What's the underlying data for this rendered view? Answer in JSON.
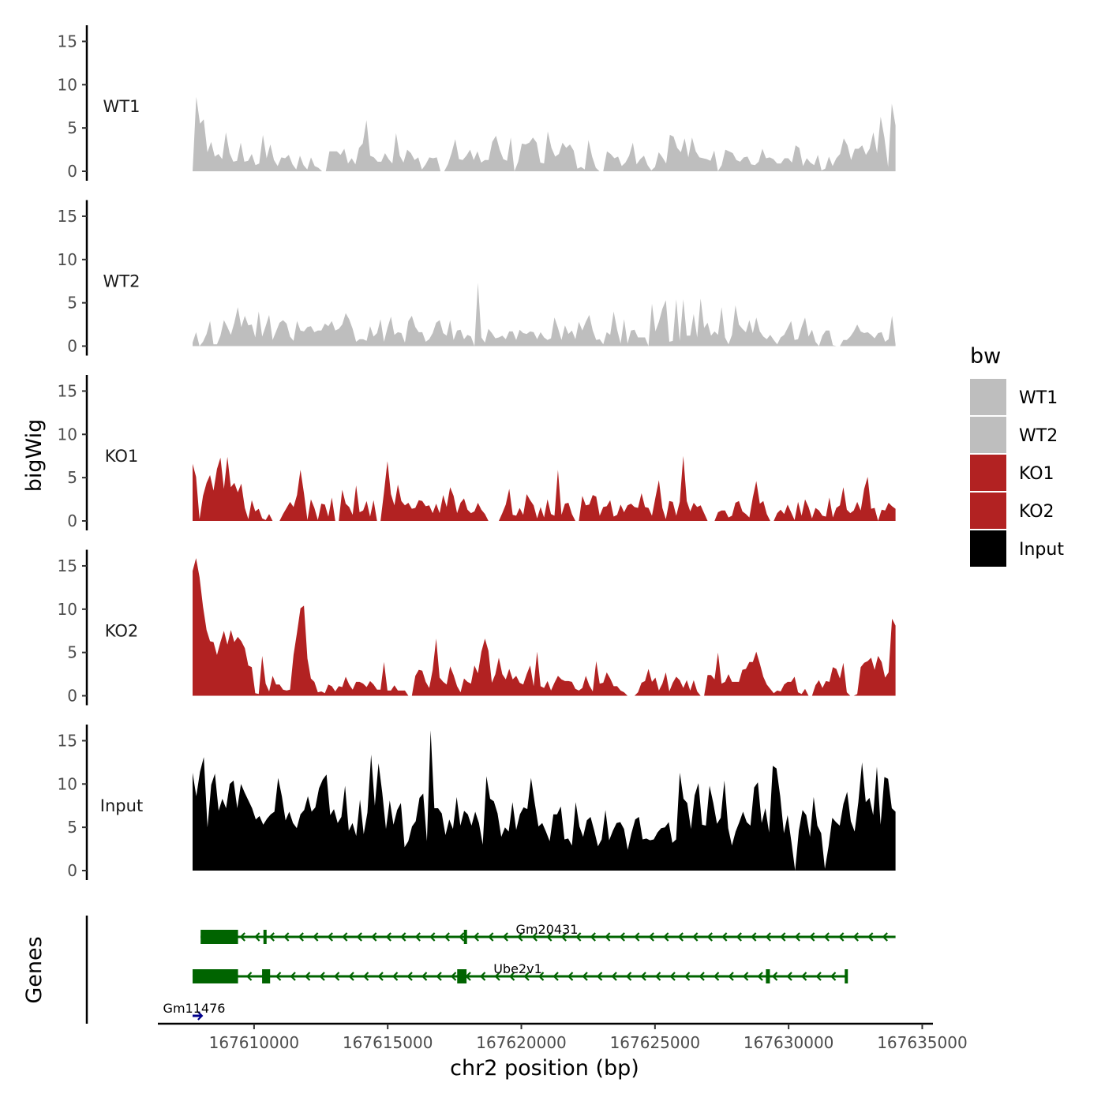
{
  "chart_data": {
    "type": "area",
    "title": "",
    "xlabel": "chr2 position (bp)",
    "ylabel": "bigWig",
    "genes_label": "Genes",
    "xlim": [
      167606400,
      167635400
    ],
    "ylim": [
      0,
      16.5
    ],
    "x_ticks": [
      167610000,
      167615000,
      167620000,
      167625000,
      167630000,
      167635000
    ],
    "x_tick_labels": [
      "167610000",
      "167615000",
      "167620000",
      "167625000",
      "167630000",
      "167635000"
    ],
    "y_ticks": [
      0,
      5,
      10,
      15
    ],
    "y_tick_labels": [
      "0",
      "5",
      "10",
      "15"
    ],
    "x_start": 167607700,
    "x_end": 167634000,
    "legend": {
      "title": "bw",
      "position": "right",
      "entries": [
        {
          "name": "WT1",
          "color": "#bebebe"
        },
        {
          "name": "WT2",
          "color": "#bebebe"
        },
        {
          "name": "KO1",
          "color": "#b22222"
        },
        {
          "name": "KO2",
          "color": "#b22222"
        },
        {
          "name": "Input",
          "color": "#000000"
        }
      ]
    },
    "series": [
      {
        "name": "WT1",
        "color": "#bebebe",
        "values": [
          0.0,
          8.6,
          5.5,
          6.0,
          2.2,
          3.4,
          1.7,
          2.0,
          1.4,
          4.5,
          2.1,
          1.1,
          1.2,
          3.3,
          1.1,
          1.2,
          2.0,
          0.7,
          0.9,
          4.2,
          1.5,
          3.1,
          1.3,
          0.6,
          1.6,
          1.5,
          1.9,
          0.8,
          0.2,
          1.8,
          0.7,
          0.2,
          1.6,
          0.6,
          0.4,
          0.0,
          0.0,
          2.3,
          2.3,
          2.3,
          1.9,
          2.6,
          0.9,
          1.5,
          0.8,
          2.7,
          3.2,
          5.9,
          1.8,
          1.6,
          1.1,
          1.1,
          2.1,
          1.4,
          0.9,
          4.4,
          1.8,
          1.0,
          2.5,
          2.1,
          1.3,
          1.6,
          0.2,
          0.8,
          1.6,
          1.5,
          1.6,
          0.0,
          0.0,
          0.8,
          2.1,
          3.7,
          1.4,
          1.3,
          1.8,
          2.5,
          1.3,
          2.3,
          1.0,
          1.3,
          1.3,
          3.4,
          4.1,
          2.5,
          1.4,
          1.2,
          3.9,
          0.0,
          1.1,
          3.2,
          3.1,
          3.3,
          3.9,
          3.3,
          1.0,
          0.9,
          4.6,
          2.7,
          1.7,
          2.0,
          3.3,
          2.7,
          3.1,
          2.4,
          0.3,
          0.5,
          0.2,
          3.6,
          1.7,
          0.4,
          0.0,
          0.0,
          2.3,
          2.0,
          1.5,
          1.7,
          0.6,
          1.0,
          1.8,
          3.3,
          0.8,
          1.4,
          1.8,
          0.7,
          0.1,
          0.5,
          2.2,
          1.6,
          0.9,
          4.2,
          4.0,
          2.7,
          2.2,
          3.8,
          1.6,
          3.9,
          2.3,
          1.6,
          1.5,
          1.4,
          1.2,
          2.4,
          0.0,
          0.7,
          2.5,
          2.3,
          2.1,
          1.3,
          1.1,
          1.6,
          1.7,
          0.8,
          0.7,
          1.1,
          2.6,
          1.5,
          1.6,
          1.4,
          0.9,
          0.9,
          1.5,
          1.5,
          1.0,
          3.0,
          2.7,
          0.6,
          1.5,
          1.0,
          0.7,
          1.9,
          0.1,
          0.3,
          1.7,
          0.6,
          1.5,
          2.0,
          3.8,
          3.0,
          1.3,
          2.6,
          2.6,
          3.0,
          1.9,
          2.6,
          4.5,
          2.1,
          6.3,
          3.9,
          0.5,
          7.8,
          5.3
        ]
      },
      {
        "name": "WT2",
        "color": "#bebebe",
        "values": [
          0.4,
          1.6,
          0.0,
          0.5,
          1.4,
          2.9,
          0.2,
          0.2,
          1.2,
          3.0,
          2.2,
          1.3,
          2.7,
          4.5,
          2.2,
          3.5,
          2.4,
          2.5,
          1.0,
          4.0,
          1.1,
          2.3,
          3.6,
          0.7,
          1.7,
          2.7,
          3.0,
          2.6,
          1.1,
          0.6,
          2.9,
          1.8,
          1.7,
          2.2,
          2.3,
          1.6,
          1.8,
          1.8,
          2.6,
          2.3,
          2.9,
          1.8,
          2.0,
          2.5,
          3.8,
          3.1,
          2.0,
          0.5,
          0.8,
          0.8,
          0.6,
          2.3,
          1.1,
          1.5,
          3.1,
          0.5,
          2.1,
          3.4,
          1.3,
          1.6,
          1.5,
          0.4,
          2.9,
          3.5,
          2.2,
          1.6,
          1.6,
          0.5,
          0.8,
          1.5,
          2.7,
          3.0,
          1.5,
          1.2,
          3.0,
          0.7,
          1.8,
          1.9,
          0.8,
          1.3,
          1.1,
          0.0,
          7.3,
          1.0,
          0.4,
          2.0,
          1.5,
          0.9,
          1.0,
          1.2,
          0.8,
          1.7,
          1.7,
          0.7,
          1.9,
          1.5,
          1.4,
          1.7,
          1.6,
          0.8,
          1.6,
          1.0,
          0.7,
          0.9,
          3.3,
          2.1,
          0.7,
          2.4,
          1.4,
          1.8,
          0.8,
          2.8,
          1.8,
          2.8,
          3.6,
          1.8,
          0.7,
          0.8,
          0.2,
          1.6,
          1.3,
          4.0,
          1.9,
          0.3,
          3.1,
          0.3,
          1.8,
          1.9,
          1.0,
          1.0,
          1.0,
          0.0,
          4.9,
          1.7,
          2.8,
          4.3,
          5.3,
          0.5,
          0.6,
          5.4,
          0.6,
          5.4,
          1.2,
          1.2,
          3.7,
          1.0,
          5.5,
          2.1,
          2.7,
          1.2,
          1.7,
          1.3,
          4.5,
          1.0,
          0.2,
          1.3,
          4.7,
          2.5,
          2.0,
          1.6,
          3.0,
          1.5,
          3.3,
          1.7,
          1.1,
          0.8,
          1.3,
          0.7,
          0.2,
          1.0,
          1.3,
          2.1,
          2.9,
          0.7,
          0.8,
          2.2,
          3.3,
          1.1,
          1.9,
          0.5,
          0.0,
          1.2,
          1.8,
          1.8,
          0.1,
          0.0,
          0.0,
          0.7,
          0.7,
          1.1,
          1.7,
          2.5,
          1.7,
          1.5,
          1.6,
          1.3,
          0.9,
          1.5,
          1.6,
          0.5,
          0.8,
          3.5,
          0.2
        ]
      },
      {
        "name": "KO1",
        "color": "#b22222",
        "values": [
          6.6,
          5.1,
          0.2,
          2.9,
          4.4,
          5.3,
          3.5,
          6.0,
          7.3,
          3.7,
          7.4,
          3.9,
          4.4,
          3.3,
          4.3,
          1.5,
          0.2,
          2.4,
          1.1,
          1.4,
          0.3,
          0.1,
          0.8,
          0.0,
          0.0,
          0.0,
          0.8,
          1.5,
          2.2,
          1.6,
          3.0,
          5.9,
          3.2,
          0.1,
          2.5,
          1.5,
          0.1,
          2.0,
          1.9,
          0.5,
          2.7,
          0.0,
          0.0,
          3.6,
          2.0,
          1.6,
          0.7,
          4.1,
          1.0,
          1.2,
          2.3,
          0.5,
          2.4,
          0.0,
          0.0,
          3.3,
          6.9,
          3.1,
          1.8,
          4.2,
          2.3,
          1.8,
          2.1,
          1.4,
          1.5,
          2.4,
          2.3,
          1.7,
          1.8,
          0.9,
          2.0,
          0.9,
          3.0,
          1.6,
          3.9,
          2.9,
          0.9,
          2.1,
          2.6,
          1.3,
          0.9,
          1.1,
          2.1,
          1.3,
          0.8,
          0.0,
          0.0,
          0.0,
          0.0,
          0.9,
          1.9,
          3.7,
          0.7,
          0.6,
          1.5,
          0.7,
          3.1,
          2.4,
          1.8,
          0.3,
          1.6,
          0.4,
          2.5,
          0.8,
          0.6,
          5.9,
          0.7,
          2.0,
          2.1,
          0.8,
          0.0,
          0.0,
          2.9,
          1.8,
          1.9,
          3.0,
          2.8,
          0.6,
          1.6,
          1.7,
          2.4,
          0.5,
          0.7,
          1.9,
          1.0,
          1.8,
          2.0,
          1.6,
          1.5,
          3.2,
          1.6,
          1.5,
          0.6,
          2.7,
          4.7,
          1.5,
          0.2,
          2.3,
          2.2,
          0.6,
          2.2,
          7.5,
          2.3,
          1.1,
          2.1,
          1.6,
          1.8,
          0.9,
          0.0,
          0.0,
          0.0,
          1.0,
          1.2,
          1.2,
          0.4,
          0.6,
          2.1,
          2.3,
          1.1,
          0.8,
          0.4,
          2.7,
          4.6,
          2.0,
          2.3,
          0.8,
          0.0,
          0.0,
          0.9,
          1.3,
          0.8,
          1.9,
          1.0,
          0.1,
          2.2,
          0.6,
          2.5,
          1.6,
          0.3,
          1.5,
          1.2,
          0.6,
          0.5,
          2.7,
          0.4,
          1.5,
          1.8,
          3.9,
          1.3,
          0.9,
          1.2,
          2.2,
          1.2,
          3.7,
          5.1,
          1.4,
          1.5,
          0.0,
          1.3,
          1.2,
          2.1,
          1.7,
          1.4
        ]
      },
      {
        "name": "KO2",
        "color": "#b22222",
        "values": [
          14.4,
          15.9,
          13.7,
          10.3,
          7.6,
          6.3,
          6.2,
          4.7,
          6.2,
          7.5,
          5.9,
          7.6,
          6.2,
          6.8,
          6.3,
          5.5,
          3.5,
          3.3,
          0.3,
          0.2,
          4.6,
          1.4,
          0.5,
          2.3,
          1.3,
          1.3,
          0.7,
          0.6,
          0.7,
          4.7,
          7.3,
          10.1,
          10.4,
          4.3,
          2.0,
          1.6,
          0.4,
          0.5,
          0.3,
          1.3,
          1.1,
          0.5,
          1.1,
          1.0,
          2.2,
          1.3,
          0.7,
          1.6,
          1.6,
          1.4,
          1.0,
          1.7,
          1.3,
          0.7,
          0.7,
          3.9,
          0.6,
          0.6,
          1.2,
          0.6,
          0.6,
          0.6,
          0.0,
          0.0,
          2.3,
          3.0,
          2.9,
          1.6,
          0.9,
          3.0,
          6.6,
          2.1,
          1.6,
          1.3,
          3.4,
          2.4,
          1.1,
          0.4,
          2.0,
          1.6,
          1.4,
          3.5,
          2.6,
          5.1,
          6.6,
          5.2,
          1.5,
          2.5,
          4.4,
          2.5,
          1.9,
          3.1,
          1.9,
          2.3,
          1.5,
          1.3,
          2.5,
          3.5,
          1.1,
          5.1,
          1.1,
          0.9,
          1.7,
          0.6,
          1.5,
          2.3,
          1.9,
          1.7,
          1.7,
          1.6,
          0.8,
          0.6,
          0.9,
          2.3,
          1.2,
          0.5,
          4.0,
          1.4,
          1.5,
          2.7,
          2.0,
          1.1,
          1.1,
          0.6,
          0.4,
          0.0,
          0.0,
          0.0,
          0.4,
          1.5,
          1.7,
          3.1,
          1.6,
          2.1,
          0.6,
          1.4,
          2.7,
          0.5,
          1.5,
          2.2,
          1.8,
          0.9,
          1.8,
          0.6,
          1.8,
          0.5,
          0.0,
          0.0,
          2.4,
          2.4,
          1.9,
          5.0,
          1.4,
          1.6,
          2.5,
          1.6,
          1.6,
          1.6,
          3.0,
          3.1,
          3.9,
          3.9,
          5.1,
          3.7,
          2.2,
          1.3,
          0.8,
          0.3,
          0.6,
          0.5,
          1.3,
          1.6,
          1.6,
          2.2,
          0.4,
          0.2,
          0.8,
          0.0,
          0.0,
          1.2,
          1.8,
          0.9,
          1.7,
          1.6,
          3.3,
          3.1,
          2.0,
          3.8,
          0.4,
          0.0,
          0.0,
          0.2,
          3.3,
          3.8,
          4.0,
          4.4,
          3.0,
          4.6,
          3.9,
          2.1,
          2.7,
          8.9,
          8.1
        ]
      },
      {
        "name": "Input",
        "color": "#000000",
        "values": [
          11.3,
          8.6,
          11.4,
          13.1,
          5.0,
          9.9,
          11.2,
          6.9,
          8.3,
          7.2,
          10.0,
          10.4,
          7.2,
          10.0,
          9.0,
          8.1,
          7.2,
          5.9,
          6.3,
          5.3,
          6.0,
          6.5,
          6.8,
          10.7,
          8.6,
          5.8,
          6.8,
          5.5,
          4.9,
          6.5,
          7.0,
          8.6,
          6.8,
          7.3,
          9.5,
          10.5,
          11.1,
          6.4,
          7.1,
          5.5,
          6.2,
          9.8,
          4.6,
          5.5,
          4.0,
          8.2,
          4.2,
          6.7,
          13.4,
          7.5,
          12.4,
          9.0,
          4.8,
          8.1,
          5.3,
          7.0,
          7.8,
          2.7,
          3.4,
          5.1,
          5.7,
          8.4,
          8.9,
          3.4,
          16.2,
          7.2,
          7.2,
          6.6,
          4.1,
          5.9,
          4.8,
          8.5,
          5.2,
          6.9,
          6.5,
          5.2,
          6.8,
          5.5,
          3.0,
          10.9,
          8.3,
          8.0,
          6.6,
          3.9,
          5.0,
          4.5,
          7.9,
          4.7,
          6.5,
          7.3,
          7.1,
          10.7,
          7.8,
          5.1,
          5.5,
          4.5,
          3.4,
          6.5,
          6.5,
          7.4,
          3.6,
          3.7,
          2.9,
          7.9,
          5.1,
          3.9,
          5.8,
          6.2,
          4.6,
          2.8,
          3.6,
          7.0,
          3.5,
          4.6,
          5.5,
          5.6,
          4.8,
          2.4,
          4.3,
          5.9,
          6.2,
          3.6,
          3.7,
          3.5,
          3.6,
          4.4,
          4.9,
          5.0,
          5.6,
          3.2,
          3.6,
          11.3,
          8.3,
          7.8,
          4.8,
          8.7,
          10.1,
          5.3,
          5.2,
          9.8,
          7.8,
          5.4,
          6.1,
          10.4,
          4.9,
          2.9,
          4.5,
          5.6,
          6.8,
          5.6,
          5.2,
          9.6,
          10.2,
          5.5,
          7.2,
          4.4,
          12.1,
          11.8,
          8.6,
          4.3,
          6.4,
          3.3,
          0.0,
          4.6,
          7.0,
          6.4,
          3.9,
          8.5,
          5.2,
          4.3,
          0.2,
          2.8,
          6.1,
          5.6,
          5.2,
          7.7,
          9.1,
          5.7,
          4.5,
          7.9,
          12.5,
          7.9,
          8.4,
          6.4,
          12.0,
          5.3,
          10.8,
          10.6,
          7.2,
          6.8
        ]
      }
    ],
    "genes": [
      {
        "name": "Gm20431",
        "start": 167608000,
        "end": 167634000,
        "strand": "-",
        "color": "#006400",
        "exons": [
          [
            167608000,
            167609400
          ],
          [
            167610350,
            167610450
          ],
          [
            167617850,
            167617950
          ]
        ]
      },
      {
        "name": "Ube2v1",
        "start": 167607700,
        "end": 167632200,
        "strand": "-",
        "color": "#006400",
        "exons": [
          [
            167607700,
            167609400
          ],
          [
            167610300,
            167610600
          ],
          [
            167617600,
            167617950
          ],
          [
            167629150,
            167629300
          ],
          [
            167632100,
            167632200
          ]
        ]
      },
      {
        "name": "Gm11476",
        "start": 167607700,
        "end": 167608050,
        "strand": "+",
        "color": "#00008b",
        "exons": []
      }
    ]
  }
}
